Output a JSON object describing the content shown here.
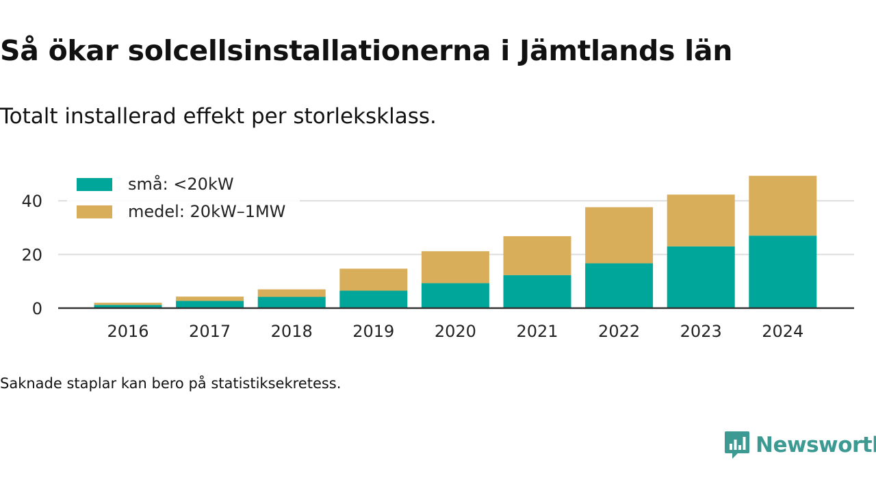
{
  "title": "Så ökar solcellsinstallationerna i Jämtlands län",
  "subtitle": "Totalt installerad effekt per storleksklass.",
  "note": "Saknade staplar kan bero på statistiksekretess.",
  "brand": {
    "name": "Newsworthy",
    "icon": "newsworthy-logo-icon"
  },
  "colors": {
    "small": "#00a699",
    "medium": "#d8ae5a",
    "grid": "#dddddd",
    "axis": "#333333",
    "brand": "#3d9a92"
  },
  "chart_data": {
    "type": "bar",
    "stacked": true,
    "categories": [
      "2016",
      "2017",
      "2018",
      "2019",
      "2020",
      "2021",
      "2022",
      "2023",
      "2024"
    ],
    "series": [
      {
        "name": "små: <20kW",
        "values": [
          1.2,
          2.7,
          4.2,
          6.5,
          9.3,
          12.3,
          16.7,
          23.0,
          27.0
        ],
        "color": "#00a699"
      },
      {
        "name": "medel: 20kW–1MW",
        "values": [
          0.8,
          1.6,
          2.8,
          8.2,
          11.9,
          14.5,
          20.9,
          19.3,
          22.3
        ],
        "color": "#d8ae5a"
      }
    ],
    "ylim": [
      0,
      50
    ],
    "yticks": [
      0,
      20,
      40
    ],
    "xlabel": "",
    "ylabel": "",
    "grid": true,
    "legend_position": "top-left"
  }
}
